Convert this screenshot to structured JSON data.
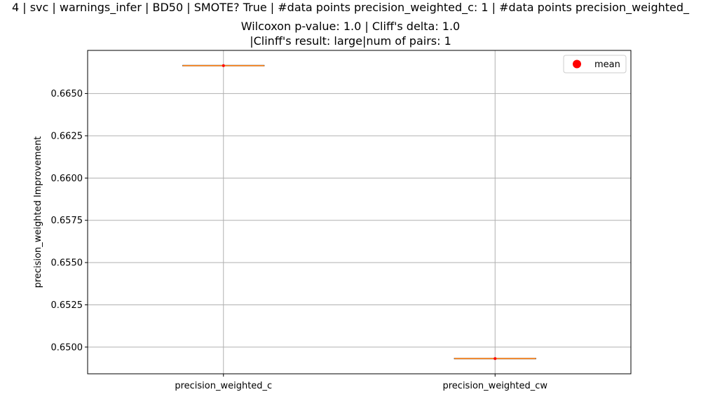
{
  "chart_data": {
    "type": "box",
    "title_lines": [
      "4 | svc | warnings_infer | BD50 | SMOTE? True | #data points precision_weighted_c: 1 | #data points precision_weighted_",
      "Wilcoxon p-value: 1.0 | Cliff's delta: 1.0",
      "|Clinff's result: large|num of pairs: 1"
    ],
    "ylabel": "precision_weighted Improvement",
    "xlabel": "",
    "categories": [
      "precision_weighted_c",
      "precision_weighted_cw"
    ],
    "values": [
      0.66665,
      0.64932
    ],
    "means": [
      0.66665,
      0.64932
    ],
    "ylim": [
      0.64842,
      0.66755
    ],
    "yticks": [
      0.65,
      0.6525,
      0.655,
      0.6575,
      0.66,
      0.6625,
      0.665
    ],
    "ytick_labels": [
      "0.6500",
      "0.6525",
      "0.6550",
      "0.6575",
      "0.6600",
      "0.6625",
      "0.6650"
    ],
    "grid": true,
    "legend": {
      "placement": "top-right",
      "entries": [
        "mean"
      ]
    },
    "colors": {
      "median": "#ff7f0e",
      "mean_marker": "#ff0000",
      "box": "#000000",
      "grid": "#b0b0b0"
    }
  }
}
